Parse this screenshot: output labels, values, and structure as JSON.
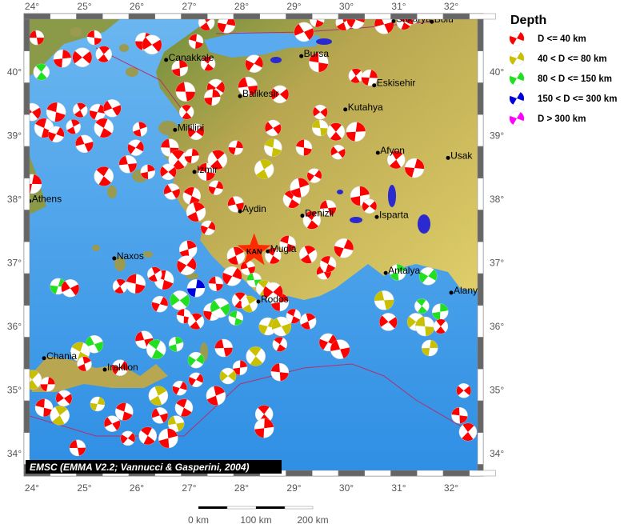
{
  "legend": {
    "title": "Depth",
    "items": [
      {
        "label": "D <= 40 km",
        "color": "#ff0000",
        "class": "r"
      },
      {
        "label": "40 < D <= 80 km",
        "color": "#c8c000",
        "class": "y"
      },
      {
        "label": "80 < D <= 150 km",
        "color": "#20e020",
        "class": "g"
      },
      {
        "label": "150 < D <= 300 km",
        "color": "#0000dd",
        "class": "b"
      },
      {
        "label": "D > 300 km",
        "color": "#ff00ff",
        "class": "m"
      }
    ]
  },
  "attribution": "EMSC (EMMA V2.2; Vannucci & Gasperini, 2004)",
  "scale_bar": {
    "labels": [
      "0 km",
      "100 km",
      "200 km"
    ]
  },
  "axes": {
    "lon": [
      24,
      25,
      26,
      27,
      28,
      29,
      30,
      31,
      32
    ],
    "lat": [
      34,
      35,
      36,
      37,
      38,
      39,
      40
    ],
    "lon_labels": [
      "24°",
      "25°",
      "26°",
      "27°",
      "28°",
      "29°",
      "30°",
      "31°",
      "32°"
    ],
    "lat_labels": [
      "34°",
      "35°",
      "36°",
      "37°",
      "38°",
      "39°",
      "40°"
    ]
  },
  "colors": {
    "sea": "#3b9be6",
    "land": "#c8b458",
    "lake": "#2a2ad0",
    "plate_boundary": "#b03070"
  },
  "epicenter": {
    "label": "KAN",
    "lon": 28.24,
    "lat": 37.19
  },
  "cities": [
    {
      "name": "Bolu",
      "lon": 31.63,
      "lat": 40.79
    },
    {
      "name": "Sakarya",
      "lon": 30.9,
      "lat": 40.8
    },
    {
      "name": "Canakkale",
      "lon": 26.56,
      "lat": 40.19
    },
    {
      "name": "Bursa",
      "lon": 29.14,
      "lat": 40.25
    },
    {
      "name": "Eskisehir",
      "lon": 30.53,
      "lat": 39.79
    },
    {
      "name": "Balikesir",
      "lon": 27.97,
      "lat": 39.62
    },
    {
      "name": "Kutahya",
      "lon": 29.98,
      "lat": 39.41
    },
    {
      "name": "Mitilini",
      "lon": 26.73,
      "lat": 39.09
    },
    {
      "name": "Izmir",
      "lon": 27.1,
      "lat": 38.43
    },
    {
      "name": "Afyon",
      "lon": 30.6,
      "lat": 38.73
    },
    {
      "name": "Usak",
      "lon": 31.94,
      "lat": 38.65
    },
    {
      "name": "Athens",
      "lon": 23.95,
      "lat": 37.97
    },
    {
      "name": "Aydin",
      "lon": 27.97,
      "lat": 37.81
    },
    {
      "name": "Denizli",
      "lon": 29.16,
      "lat": 37.74
    },
    {
      "name": "Isparta",
      "lon": 30.58,
      "lat": 37.72
    },
    {
      "name": "Naxos",
      "lon": 25.57,
      "lat": 37.07
    },
    {
      "name": "Mugla",
      "lon": 28.5,
      "lat": 37.18
    },
    {
      "name": "Antalya",
      "lon": 30.75,
      "lat": 36.84
    },
    {
      "name": "Alanya",
      "lon": 32.0,
      "lat": 36.53
    },
    {
      "name": "Rodos",
      "lon": 28.32,
      "lat": 36.39
    },
    {
      "name": "Chania",
      "lon": 24.23,
      "lat": 35.5
    },
    {
      "name": "Iraklion",
      "lon": 25.39,
      "lat": 35.32
    }
  ],
  "events": [
    [
      24.09,
      40.54,
      "r"
    ],
    [
      24.18,
      40.0,
      "g"
    ],
    [
      24.58,
      40.21,
      "r"
    ],
    [
      24.96,
      40.23,
      "r"
    ],
    [
      25.19,
      40.54,
      "r"
    ],
    [
      25.37,
      40.28,
      "r"
    ],
    [
      26.14,
      40.48,
      "r"
    ],
    [
      26.29,
      40.43,
      "r"
    ],
    [
      27.13,
      40.48,
      "r"
    ],
    [
      27.33,
      40.78,
      "r"
    ],
    [
      27.71,
      40.75,
      "r"
    ],
    [
      29.19,
      40.63,
      "r"
    ],
    [
      29.44,
      40.82,
      "r"
    ],
    [
      29.95,
      40.78,
      "r"
    ],
    [
      30.18,
      40.82,
      "r"
    ],
    [
      30.72,
      40.75,
      "r"
    ],
    [
      31.1,
      40.78,
      "r"
    ],
    [
      31.25,
      40.88,
      "r"
    ],
    [
      28.24,
      40.13,
      "r"
    ],
    [
      28.12,
      39.77,
      "r"
    ],
    [
      27.36,
      40.13,
      "r"
    ],
    [
      26.82,
      40.06,
      "r"
    ],
    [
      27.51,
      39.75,
      "r"
    ],
    [
      26.93,
      39.69,
      "r"
    ],
    [
      26.95,
      39.37,
      "r"
    ],
    [
      27.44,
      39.6,
      "r"
    ],
    [
      28.73,
      39.65,
      "r"
    ],
    [
      29.47,
      40.15,
      "r"
    ],
    [
      30.18,
      39.94,
      "r"
    ],
    [
      30.44,
      39.91,
      "r"
    ],
    [
      24.0,
      39.37,
      "r"
    ],
    [
      24.46,
      39.37,
      "r"
    ],
    [
      24.92,
      39.4,
      "r"
    ],
    [
      25.25,
      39.37,
      "r"
    ],
    [
      25.53,
      39.43,
      "r"
    ],
    [
      24.23,
      39.12,
      "r"
    ],
    [
      24.79,
      39.14,
      "r"
    ],
    [
      24.46,
      39.02,
      "r"
    ],
    [
      25.0,
      38.87,
      "r"
    ],
    [
      25.37,
      39.12,
      "r"
    ],
    [
      26.06,
      39.1,
      "r"
    ],
    [
      25.98,
      38.81,
      "r"
    ],
    [
      25.83,
      38.55,
      "r"
    ],
    [
      25.37,
      38.36,
      "r"
    ],
    [
      26.21,
      38.43,
      "r"
    ],
    [
      27.13,
      39.06,
      "r"
    ],
    [
      26.63,
      38.81,
      "r"
    ],
    [
      26.79,
      38.62,
      "r"
    ],
    [
      27.05,
      38.68,
      "r"
    ],
    [
      26.6,
      38.43,
      "r"
    ],
    [
      27.33,
      38.43,
      "r"
    ],
    [
      27.54,
      38.62,
      "r"
    ],
    [
      27.89,
      38.81,
      "r"
    ],
    [
      28.6,
      39.12,
      "r"
    ],
    [
      28.6,
      38.81,
      "y"
    ],
    [
      28.43,
      38.47,
      "y"
    ],
    [
      27.51,
      38.18,
      "r"
    ],
    [
      26.67,
      38.12,
      "r"
    ],
    [
      27.05,
      38.05,
      "r"
    ],
    [
      27.13,
      37.8,
      "r"
    ],
    [
      27.36,
      37.55,
      "r"
    ],
    [
      27.89,
      37.92,
      "r"
    ],
    [
      28.96,
      38.0,
      "r"
    ],
    [
      29.11,
      38.18,
      "r"
    ],
    [
      29.39,
      38.37,
      "r"
    ],
    [
      29.65,
      37.86,
      "r"
    ],
    [
      29.34,
      37.67,
      "r"
    ],
    [
      30.26,
      38.05,
      "r"
    ],
    [
      30.44,
      37.89,
      "r"
    ],
    [
      29.5,
      39.12,
      "y"
    ],
    [
      29.8,
      39.06,
      "r"
    ],
    [
      30.18,
      39.06,
      "r"
    ],
    [
      29.5,
      39.37,
      "r"
    ],
    [
      29.19,
      38.81,
      "r"
    ],
    [
      30.95,
      38.62,
      "r"
    ],
    [
      31.3,
      38.49,
      "r"
    ],
    [
      29.84,
      38.74,
      "r"
    ],
    [
      28.88,
      37.3,
      "r"
    ],
    [
      29.27,
      37.13,
      "r"
    ],
    [
      29.95,
      37.23,
      "r"
    ],
    [
      29.57,
      36.85,
      "r"
    ],
    [
      29.65,
      36.98,
      "r"
    ],
    [
      27.89,
      37.11,
      "r"
    ],
    [
      27.82,
      36.79,
      "r"
    ],
    [
      28.12,
      36.92,
      "r"
    ],
    [
      28.6,
      37.11,
      "r"
    ],
    [
      26.98,
      37.21,
      "r"
    ],
    [
      26.95,
      36.96,
      "r"
    ],
    [
      28.24,
      36.73,
      "g"
    ],
    [
      28.43,
      36.6,
      "y"
    ],
    [
      28.73,
      36.38,
      "r"
    ],
    [
      28.6,
      36.54,
      "r"
    ],
    [
      27.51,
      36.67,
      "r"
    ],
    [
      27.97,
      36.41,
      "r"
    ],
    [
      27.13,
      36.6,
      "b"
    ],
    [
      26.82,
      36.41,
      "g"
    ],
    [
      26.9,
      36.16,
      "r"
    ],
    [
      27.13,
      36.08,
      "r"
    ],
    [
      27.44,
      36.23,
      "r"
    ],
    [
      27.59,
      36.29,
      "g"
    ],
    [
      27.89,
      36.13,
      "g"
    ],
    [
      28.15,
      36.35,
      "y"
    ],
    [
      28.5,
      36.0,
      "y"
    ],
    [
      28.76,
      36.0,
      "y"
    ],
    [
      28.99,
      36.16,
      "r"
    ],
    [
      29.27,
      36.08,
      "r"
    ],
    [
      29.65,
      35.75,
      "r"
    ],
    [
      29.88,
      35.64,
      "r"
    ],
    [
      28.73,
      35.72,
      "r"
    ],
    [
      30.98,
      36.85,
      "g"
    ],
    [
      31.56,
      36.79,
      "g"
    ],
    [
      30.72,
      36.41,
      "y"
    ],
    [
      31.44,
      36.32,
      "g"
    ],
    [
      31.79,
      36.23,
      "g"
    ],
    [
      31.33,
      36.07,
      "y"
    ],
    [
      31.5,
      36.0,
      "y"
    ],
    [
      31.8,
      36.0,
      "r"
    ],
    [
      31.59,
      35.66,
      "y"
    ],
    [
      30.8,
      36.07,
      "r"
    ],
    [
      25.98,
      36.67,
      "r"
    ],
    [
      25.68,
      36.63,
      "r"
    ],
    [
      24.5,
      36.63,
      "g"
    ],
    [
      24.73,
      36.6,
      "r"
    ],
    [
      26.52,
      36.73,
      "r"
    ],
    [
      26.34,
      36.82,
      "r"
    ],
    [
      26.44,
      36.35,
      "r"
    ],
    [
      25.19,
      35.72,
      "g"
    ],
    [
      24.92,
      35.6,
      "y"
    ],
    [
      25.0,
      35.41,
      "r"
    ],
    [
      25.68,
      35.35,
      "r"
    ],
    [
      26.14,
      35.79,
      "r"
    ],
    [
      26.37,
      35.64,
      "g"
    ],
    [
      26.75,
      35.72,
      "g"
    ],
    [
      27.13,
      35.47,
      "g"
    ],
    [
      27.66,
      35.66,
      "r"
    ],
    [
      28.27,
      35.53,
      "y"
    ],
    [
      27.97,
      35.35,
      "r"
    ],
    [
      27.74,
      35.22,
      "y"
    ],
    [
      28.73,
      35.28,
      "r"
    ],
    [
      24.0,
      35.16,
      "y"
    ],
    [
      24.3,
      35.09,
      "r"
    ],
    [
      24.61,
      34.87,
      "r"
    ],
    [
      24.23,
      34.72,
      "r"
    ],
    [
      24.53,
      34.6,
      "y"
    ],
    [
      25.25,
      34.78,
      "y"
    ],
    [
      25.53,
      34.47,
      "r"
    ],
    [
      25.76,
      34.66,
      "r"
    ],
    [
      26.41,
      34.91,
      "y"
    ],
    [
      26.82,
      35.03,
      "r"
    ],
    [
      26.44,
      34.6,
      "r"
    ],
    [
      26.9,
      34.72,
      "r"
    ],
    [
      27.51,
      34.91,
      "r"
    ],
    [
      27.13,
      35.16,
      "r"
    ],
    [
      26.75,
      34.47,
      "y"
    ],
    [
      26.21,
      34.28,
      "r"
    ],
    [
      26.6,
      34.24,
      "r"
    ],
    [
      25.83,
      34.24,
      "r"
    ],
    [
      24.87,
      34.09,
      "r"
    ],
    [
      28.43,
      34.62,
      "r"
    ],
    [
      28.43,
      34.4,
      "r"
    ],
    [
      32.24,
      34.99,
      "r"
    ],
    [
      32.16,
      34.6,
      "r"
    ],
    [
      32.32,
      34.34,
      "r"
    ],
    [
      24.0,
      38.24,
      "r"
    ]
  ]
}
